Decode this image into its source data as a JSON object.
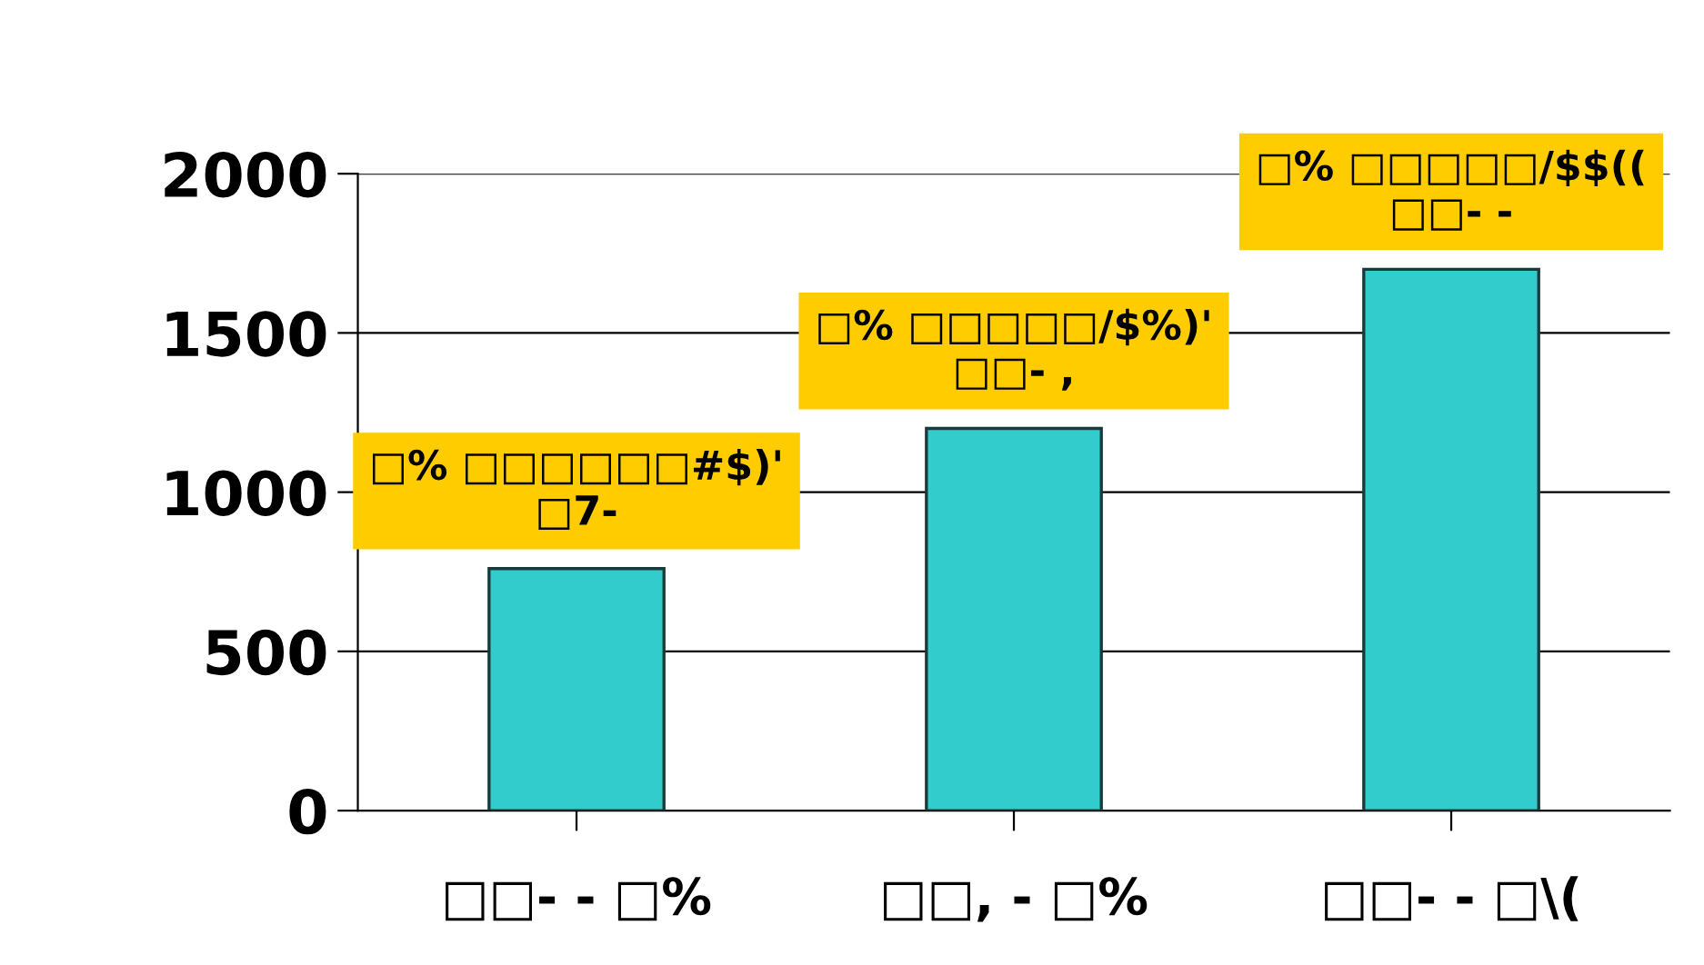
{
  "chart_data": {
    "type": "bar",
    "categories": [
      "□□- - □%",
      "□□, - □%",
      "□□- - □\\("
    ],
    "values": [
      760,
      1200,
      1700
    ],
    "color": "#33cccc",
    "annotations": [
      {
        "text": "□% □□□□□□#$)'\n□7-",
        "x": "□□- - □%",
        "y": 760
      },
      {
        "text": "□% □□□□□/$%)'\n□□- ,",
        "x": "□□, - □%",
        "y": 1200
      },
      {
        "text": "□% □□□□□/$$((\n□□- -",
        "x": "□□- - □\\(",
        "y": 1700
      }
    ],
    "ylim": [
      0,
      2000
    ],
    "yticks": [
      0,
      500,
      1000,
      1500,
      2000
    ],
    "grid": "y"
  }
}
